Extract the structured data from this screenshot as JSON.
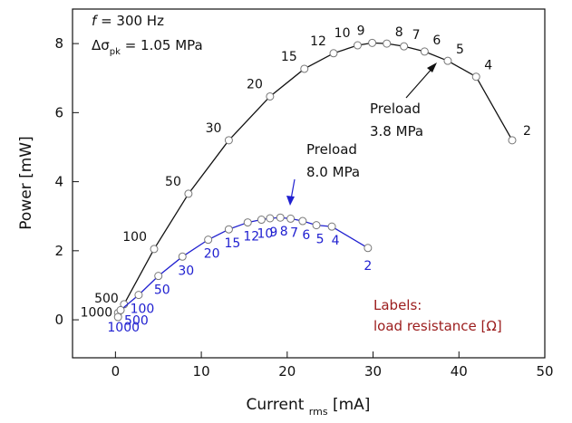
{
  "chart_data": {
    "type": "line",
    "x_label": "Current",
    "x_label_sub": "rms",
    "x_label_unit": "[mA]",
    "y_label": "Power [mW]",
    "xlim": [
      -5,
      50
    ],
    "xticks": [
      0,
      10,
      20,
      30,
      40,
      50
    ],
    "ylim": [
      -1.1,
      9
    ],
    "yticks": [
      0,
      2,
      4,
      6,
      8
    ],
    "annotations": {
      "freq_symbol": "f",
      "freq": "= 300 Hz",
      "stress_symbol": "Δσ",
      "stress_sub": "pk",
      "stress": "= 1.05 MPa",
      "preload_a": [
        "Preload",
        "3.8 MPa"
      ],
      "preload_b": [
        "Preload",
        "8.0 MPa"
      ],
      "labels_note": [
        "Labels:",
        "load resistance [Ω]"
      ]
    },
    "series": [
      {
        "name": "Preload 3.8 MPa",
        "color": "#111111",
        "x": [
          0.3,
          1.0,
          4.5,
          8.5,
          13.2,
          18.0,
          22.0,
          25.4,
          28.2,
          29.9,
          31.6,
          33.6,
          36.0,
          38.7,
          42.0,
          46.2
        ],
        "values": [
          0.2,
          0.45,
          2.05,
          3.65,
          5.2,
          6.47,
          7.27,
          7.72,
          7.95,
          8.02,
          8.0,
          7.92,
          7.77,
          7.5,
          7.04,
          5.2
        ],
        "point_labels": [
          1000,
          500,
          100,
          50,
          30,
          20,
          15,
          12,
          10,
          9,
          8,
          7,
          6,
          5,
          4,
          2
        ]
      },
      {
        "name": "Preload 8.0 MPa",
        "color": "#2020d0",
        "x": [
          0.3,
          0.6,
          2.7,
          5.0,
          7.8,
          10.8,
          13.2,
          15.4,
          17.0,
          18.0,
          19.2,
          20.4,
          21.8,
          23.4,
          25.2,
          29.4
        ],
        "values": [
          0.08,
          0.28,
          0.72,
          1.27,
          1.83,
          2.32,
          2.62,
          2.82,
          2.9,
          2.94,
          2.96,
          2.93,
          2.86,
          2.74,
          2.7,
          2.08
        ],
        "point_labels": [
          1000,
          500,
          100,
          50,
          30,
          20,
          15,
          12,
          10,
          9,
          8,
          7,
          6,
          5,
          4,
          2
        ]
      }
    ]
  }
}
